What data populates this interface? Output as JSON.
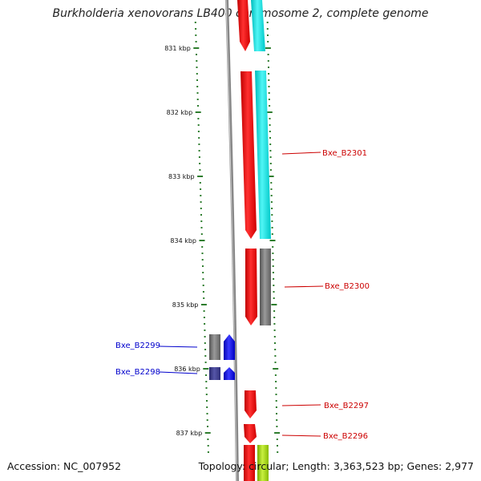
{
  "title": "Burkholderia xenovorans LB400 chromosome 2, complete genome",
  "footer": {
    "accession": "Accession: NC_007952",
    "topology": "Topology: circular; Length: 3,363,523 bp; Genes: 2,977"
  },
  "ruler": {
    "ticks": [
      {
        "label": "831 kbp",
        "kbp": 831
      },
      {
        "label": "832 kbp",
        "kbp": 832
      },
      {
        "label": "833 kbp",
        "kbp": 833
      },
      {
        "label": "834 kbp",
        "kbp": 834
      },
      {
        "label": "835 kbp",
        "kbp": 835
      },
      {
        "label": "836 kbp",
        "kbp": 836
      },
      {
        "label": "837 kbp",
        "kbp": 837
      }
    ]
  },
  "gene_labels": [
    {
      "name": "Bxe_B2301",
      "side": "right",
      "color": "#cc0000"
    },
    {
      "name": "Bxe_B2300",
      "side": "right",
      "color": "#cc0000"
    },
    {
      "name": "Bxe_B2299",
      "side": "left",
      "color": "#0000cc"
    },
    {
      "name": "Bxe_B2298",
      "side": "left",
      "color": "#0000cc"
    },
    {
      "name": "Bxe_B2297",
      "side": "right",
      "color": "#cc0000"
    },
    {
      "name": "Bxe_B2296",
      "side": "right",
      "color": "#cc0000"
    }
  ],
  "colors": {
    "backbone": "#888888",
    "forward_gene": "#ff0000",
    "reverse_gene": "#0000ff",
    "cyan_feature": "#00e5e5",
    "gray_feature": "#777777",
    "dark_blue_feature": "#3a3a8c",
    "green_feature": "#99cc00",
    "tick": "#2e7d2e"
  }
}
